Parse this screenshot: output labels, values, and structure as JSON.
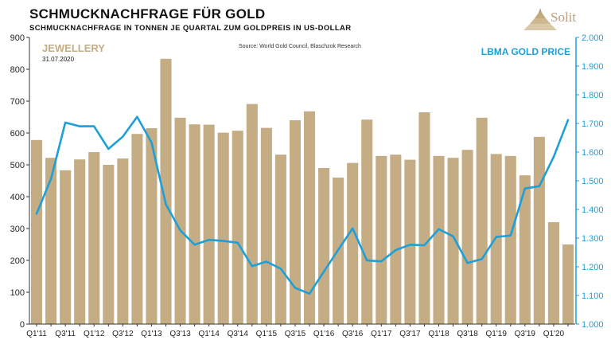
{
  "header": {
    "title": "SCHMUCKNACHFRAGE FÜR GOLD",
    "subtitle": "SCHMUCKNACHFRAGE IN TONNEN JE QUARTAL ZUM GOLDPREIS IN US-DOLLAR"
  },
  "logo": {
    "text": "Solit",
    "color": "#b8a07a"
  },
  "chart_data": {
    "type": "bar",
    "source": "Source: World Gold Council, Blaschzok Research",
    "date": "31.07.2020",
    "categories": [
      "Q1'11",
      "Q2'11",
      "Q3'11",
      "Q4'11",
      "Q1'12",
      "Q2'12",
      "Q3'12",
      "Q4'12",
      "Q1'13",
      "Q2'13",
      "Q3'13",
      "Q4'13",
      "Q1'14",
      "Q2'14",
      "Q3'14",
      "Q4'14",
      "Q1'15",
      "Q2'15",
      "Q3'15",
      "Q4'15",
      "Q1'16",
      "Q2'16",
      "Q3'16",
      "Q4'16",
      "Q1'17",
      "Q2'17",
      "Q3'17",
      "Q4'17",
      "Q1'18",
      "Q2'18",
      "Q3'18",
      "Q4'18",
      "Q1'19",
      "Q2'19",
      "Q3'19",
      "Q4'19",
      "Q1'20",
      "Q2'20"
    ],
    "x_tick_labels": [
      "Q1'11",
      "",
      "Q3'11",
      "",
      "Q1'12",
      "",
      "Q3'12",
      "",
      "Q1'13",
      "",
      "Q3'13",
      "",
      "Q1'14",
      "",
      "Q3'14",
      "",
      "Q1'15",
      "",
      "Q3'15",
      "",
      "Q1'16",
      "",
      "Q3'16",
      "",
      "Q1'17",
      "",
      "Q3'17",
      "",
      "Q1'18",
      "",
      "Q3'18",
      "",
      "Q1'19",
      "",
      "Q3'19",
      "",
      "Q1'20",
      ""
    ],
    "series": [
      {
        "name": "JEWELLERY",
        "kind": "bar",
        "axis": "left",
        "color": "#c4ad84",
        "values": [
          578,
          522,
          483,
          517,
          540,
          500,
          520,
          597,
          615,
          833,
          648,
          627,
          626,
          601,
          607,
          691,
          616,
          532,
          640,
          668,
          490,
          460,
          506,
          642,
          528,
          532,
          516,
          665,
          528,
          522,
          547,
          648,
          534,
          528,
          467,
          588,
          320,
          250
        ]
      },
      {
        "name": "LBMA GOLD PRICE",
        "kind": "line",
        "axis": "right",
        "color": "#1f9fd8",
        "values": [
          1385,
          1507,
          1703,
          1690,
          1690,
          1611,
          1654,
          1723,
          1634,
          1418,
          1327,
          1277,
          1294,
          1290,
          1284,
          1202,
          1218,
          1193,
          1126,
          1106,
          1183,
          1259,
          1334,
          1222,
          1219,
          1258,
          1277,
          1275,
          1331,
          1306,
          1213,
          1227,
          1304,
          1309,
          1473,
          1481,
          1583,
          1712
        ]
      }
    ],
    "y_left": {
      "lim": [
        0,
        900
      ],
      "ticks": [
        "0",
        "100",
        "200",
        "300",
        "400",
        "500",
        "600",
        "700",
        "800",
        "900"
      ]
    },
    "y_right": {
      "lim": [
        1000,
        2000
      ],
      "ticks": [
        "1.000",
        "1.100",
        "1.200",
        "1.300",
        "1.400",
        "1.500",
        "1.600",
        "1.700",
        "1.800",
        "1.900",
        "2.000"
      ]
    },
    "grid": false,
    "legend": "top-left / top-right labels"
  }
}
